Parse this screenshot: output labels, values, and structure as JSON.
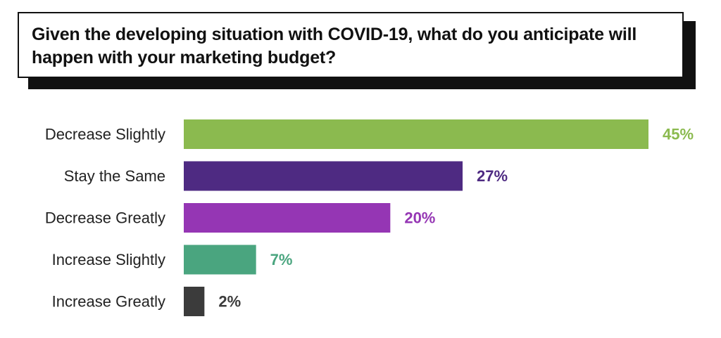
{
  "chart_data": {
    "type": "bar",
    "orientation": "horizontal",
    "title": "Given the developing situation with COVID-19, what do you anticipate will happen with your marketing budget?",
    "categories": [
      "Decrease Slightly",
      "Stay the Same",
      "Decrease Greatly",
      "Increase Slightly",
      "Increase Greatly"
    ],
    "values": [
      45,
      27,
      20,
      7,
      2
    ],
    "value_labels": [
      "45%",
      "27%",
      "20%",
      "7%",
      "2%"
    ],
    "colors": [
      "#8bba4f",
      "#4e2a82",
      "#9536b4",
      "#4aa57f",
      "#3b3b3b"
    ],
    "xlim": [
      0,
      45
    ],
    "grid": false,
    "legend": "none"
  }
}
